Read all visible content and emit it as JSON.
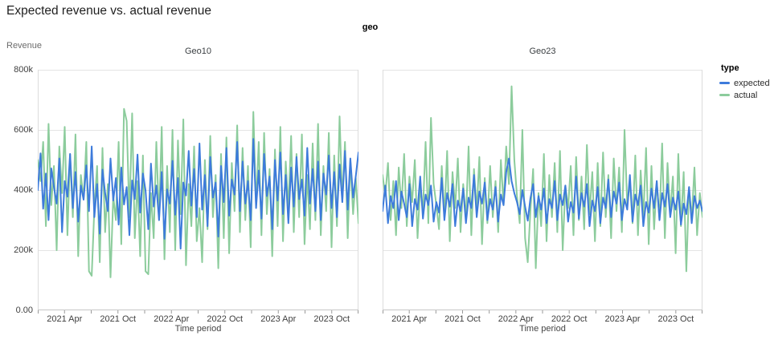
{
  "header": {
    "title": "Expected revenue vs. actual revenue",
    "facet_field": "geo"
  },
  "y_axis": {
    "title": "Revenue",
    "max": 800,
    "tick_values": [
      0,
      200,
      400,
      600,
      800
    ],
    "tick_labels": [
      "0.00",
      "200k",
      "400k",
      "600k",
      "800k"
    ]
  },
  "x_axis": {
    "title": "Time period",
    "minor_tick_months": [
      0,
      3,
      6,
      9,
      12,
      15,
      18,
      21,
      24,
      27,
      30,
      33,
      36
    ],
    "labels": [
      {
        "m": 3,
        "text": "2021 Apr"
      },
      {
        "m": 9,
        "text": "2021 Oct"
      },
      {
        "m": 15,
        "text": "2022 Apr"
      },
      {
        "m": 21,
        "text": "2022 Oct"
      },
      {
        "m": 27,
        "text": "2023 Apr"
      },
      {
        "m": 33,
        "text": "2023 Oct"
      }
    ]
  },
  "legend": {
    "title": "type",
    "items": [
      {
        "label": "expected",
        "color": "#3d7bdb"
      },
      {
        "label": "actual",
        "color": "#8ccc9c"
      }
    ]
  },
  "colors": {
    "grid": "#e4e4e4",
    "border": "#dcdcdc",
    "axis_line": "#c6c6c6",
    "tick": "#9a9a9a"
  },
  "chart_data": {
    "type": "line",
    "title": "Expected revenue vs. actual revenue",
    "facet_field": "geo",
    "xlabel": "Time period",
    "ylabel": "Revenue",
    "x_unit": "week",
    "x_range": [
      "2021 Jan",
      "2023 Dec"
    ],
    "x_tick_labels": [
      "2021 Apr",
      "2021 Oct",
      "2022 Apr",
      "2022 Oct",
      "2023 Apr",
      "2023 Oct"
    ],
    "ylim_thousands": [
      0,
      800
    ],
    "value_unit": "thousands of revenue (k)",
    "legend_position": "right",
    "grid": "horizontal",
    "facets": [
      {
        "name": "Geo10",
        "series": [
          {
            "name": "expected",
            "color": "#3d7bdb",
            "values": [
              400,
              522,
              338,
              455,
              300,
              472,
              410,
              355,
              505,
              260,
              430,
              378,
              520,
              340,
              460,
              295,
              415,
              368,
              482,
              330,
              545,
              310,
              420,
              255,
              468,
              390,
              330,
              505,
              365,
              440,
              285,
              475,
              352,
              410,
              250,
              432,
              370,
              518,
              325,
              455,
              398,
              270,
              488,
              345,
              415,
              300,
              460,
              238,
              402,
              355,
              497,
              318,
              440,
              205,
              425,
              382,
              530,
              348,
              470,
              310,
              555,
              335,
              450,
              280,
              510,
              375,
              425,
              245,
              480,
              360,
              540,
              315,
              435,
              385,
              560,
              330,
              495,
              355,
              430,
              300,
              570,
              340,
              465,
              305,
              520,
              380,
              445,
              270,
              500,
              365,
              525,
              320,
              450,
              290,
              475,
              345,
              510,
              370,
              435,
              315,
              540,
              355,
              470,
              330,
              495,
              300,
              455,
              385,
              515,
              340,
              460,
              310,
              485,
              360,
              530,
              335,
              505,
              375,
              445,
              525
            ]
          },
          {
            "name": "actual",
            "color": "#8ccc9c",
            "values": [
              500,
              430,
              560,
              280,
              620,
              350,
              480,
              200,
              545,
              390,
              610,
              250,
              520,
              310,
              585,
              180,
              450,
              370,
              560,
              130,
              115,
              340,
              480,
              160,
              540,
              260,
              420,
              110,
              380,
              300,
              560,
              220,
              670,
              630,
              310,
              655,
              240,
              430,
              180,
              515,
              130,
              120,
              390,
              240,
              560,
              300,
              610,
              170,
              480,
              260,
              600,
              200,
              565,
              320,
              635,
              150,
              420,
              280,
              545,
              230,
              340,
              160,
              500,
              270,
              580,
              310,
              450,
              140,
              520,
              240,
              575,
              190,
              490,
              330,
              615,
              260,
              540,
              300,
              480,
              210,
              660,
              350,
              560,
              250,
              590,
              320,
              470,
              180,
              535,
              280,
              610,
              230,
              495,
              340,
              580,
              260,
              520,
              310,
              585,
              220,
              450,
              270,
              555,
              300,
              620,
              250,
              480,
              330,
              590,
              210,
              515,
              280,
              645,
              360,
              560,
              240,
              500,
              320,
              440,
              290
            ]
          }
        ]
      },
      {
        "name": "Geo23",
        "series": [
          {
            "name": "expected",
            "color": "#3d7bdb",
            "values": [
              330,
              415,
              290,
              380,
              340,
              430,
              300,
              395,
              355,
              310,
              420,
              280,
              370,
              335,
              445,
              305,
              385,
              350,
              415,
              295,
              360,
              325,
              440,
              300,
              390,
              345,
              420,
              280,
              365,
              330,
              405,
              290,
              375,
              340,
              450,
              310,
              395,
              355,
              425,
              300,
              370,
              335,
              410,
              295,
              385,
              350,
              460,
              505,
              430,
              390,
              360,
              320,
              400,
              345,
              298,
              372,
              420,
              310,
              380,
              335,
              405,
              290,
              370,
              340,
              430,
              300,
              385,
              350,
              415,
              295,
              360,
              325,
              445,
              305,
              390,
              345,
              420,
              280,
              365,
              330,
              410,
              290,
              375,
              340,
              435,
              310,
              395,
              355,
              425,
              300,
              370,
              335,
              450,
              295,
              385,
              350,
              415,
              280,
              360,
              325,
              405,
              340,
              430,
              300,
              390,
              345,
              420,
              310,
              375,
              335,
              395,
              285,
              355,
              320,
              410,
              290,
              380,
              340,
              365,
              330
            ]
          },
          {
            "name": "actual",
            "color": "#8ccc9c",
            "values": [
              450,
              380,
              490,
              300,
              430,
              250,
              475,
              340,
              520,
              280,
              445,
              360,
              500,
              240,
              410,
              330,
              560,
              290,
              640,
              420,
              350,
              270,
              480,
              310,
              530,
              230,
              460,
              340,
              505,
              260,
              420,
              300,
              545,
              250,
              470,
              330,
              510,
              220,
              440,
              290,
              480,
              310,
              430,
              260,
              500,
              350,
              545,
              420,
              745,
              500,
              380,
              290,
              600,
              240,
              160,
              330,
              470,
              140,
              390,
              280,
              520,
              230,
              450,
              310,
              490,
              260,
              530,
              200,
              415,
              340,
              480,
              250,
              510,
              300,
              445,
              270,
              550,
              320,
              460,
              230,
              490,
              280,
              525,
              310,
              450,
              240,
              505,
              330,
              475,
              260,
              600,
              350,
              430,
              290,
              515,
              250,
              465,
              310,
              540,
              220,
              480,
              270,
              430,
              300,
              555,
              240,
              490,
              320,
              445,
              190,
              520,
              280,
              460,
              130,
              410,
              300,
              475,
              250,
              390,
              310
            ]
          }
        ]
      }
    ]
  }
}
